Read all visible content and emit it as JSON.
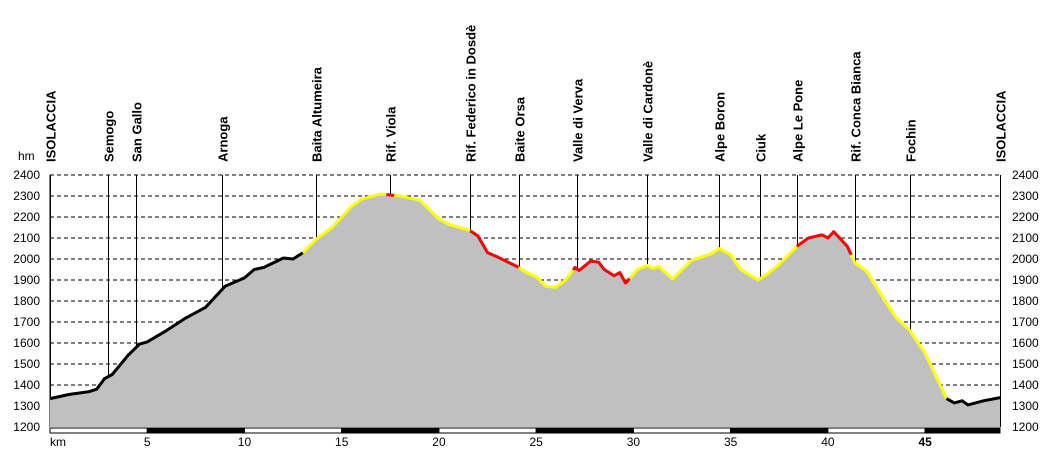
{
  "chart_data": {
    "type": "area",
    "title": "",
    "xlabel": "km",
    "ylabel": "hm",
    "xlim": [
      0,
      48.85
    ],
    "ylim": [
      1200,
      2400
    ],
    "y_ticks": [
      1200,
      1300,
      1400,
      1500,
      1600,
      1700,
      1800,
      1900,
      2000,
      2100,
      2200,
      2300,
      2400
    ],
    "x_ticks": [
      5,
      10,
      15,
      20,
      25,
      30,
      35,
      40,
      45
    ],
    "grid": "horizontal dashed",
    "colors": {
      "fill": "#c0c0c0",
      "easy": "#000000",
      "medium": "#ffff00",
      "hard": "#ff0000"
    },
    "waypoints": [
      {
        "name": "ISOLACCIA",
        "km": 0
      },
      {
        "name": "Semogo",
        "km": 3.0
      },
      {
        "name": "San Gallo",
        "km": 4.4
      },
      {
        "name": "Arnoga",
        "km": 8.85
      },
      {
        "name": "Baita Altumeira",
        "km": 13.7
      },
      {
        "name": "Rif. Viola",
        "km": 17.5
      },
      {
        "name": "Rif. Federico in Dosdè",
        "km": 21.6
      },
      {
        "name": "Baite Orsa",
        "km": 24.1
      },
      {
        "name": "Valle di Verva",
        "km": 27.1
      },
      {
        "name": "Valle di Cardonè",
        "km": 30.7
      },
      {
        "name": "Alpe Boron",
        "km": 34.4
      },
      {
        "name": "Ciuk",
        "km": 36.5
      },
      {
        "name": "Alpe Le Pone",
        "km": 38.4
      },
      {
        "name": "Rif. Conca Bianca",
        "km": 41.4
      },
      {
        "name": "Fochin",
        "km": 44.2
      },
      {
        "name": "ISOLACCIA",
        "km": 48.85
      }
    ],
    "profile": [
      [
        0,
        1335
      ],
      [
        1,
        1355
      ],
      [
        2,
        1368
      ],
      [
        2.4,
        1380
      ],
      [
        2.8,
        1430
      ],
      [
        3.2,
        1450
      ],
      [
        4,
        1540
      ],
      [
        4.6,
        1595
      ],
      [
        5,
        1605
      ],
      [
        6,
        1660
      ],
      [
        7,
        1720
      ],
      [
        8,
        1770
      ],
      [
        9,
        1870
      ],
      [
        10,
        1910
      ],
      [
        10.5,
        1950
      ],
      [
        11,
        1960
      ],
      [
        12,
        2005
      ],
      [
        12.5,
        2000
      ],
      [
        13,
        2030
      ],
      [
        13.7,
        2095
      ],
      [
        14.5,
        2150
      ],
      [
        15.5,
        2250
      ],
      [
        16,
        2285
      ],
      [
        17,
        2310
      ],
      [
        17.5,
        2305
      ],
      [
        18,
        2300
      ],
      [
        19,
        2280
      ],
      [
        20,
        2190
      ],
      [
        20.5,
        2165
      ],
      [
        21.6,
        2135
      ],
      [
        22,
        2110
      ],
      [
        22.5,
        2030
      ],
      [
        23,
        2010
      ],
      [
        24.1,
        1960
      ],
      [
        24.5,
        1935
      ],
      [
        25,
        1915
      ],
      [
        25.5,
        1870
      ],
      [
        26,
        1865
      ],
      [
        26.5,
        1900
      ],
      [
        27,
        1960
      ],
      [
        27.2,
        1945
      ],
      [
        27.8,
        1990
      ],
      [
        28.2,
        1985
      ],
      [
        28.5,
        1950
      ],
      [
        29,
        1920
      ],
      [
        29.3,
        1935
      ],
      [
        29.6,
        1885
      ],
      [
        30.2,
        1950
      ],
      [
        30.7,
        1970
      ],
      [
        31,
        1955
      ],
      [
        31.3,
        1965
      ],
      [
        32,
        1905
      ],
      [
        33,
        1995
      ],
      [
        34,
        2025
      ],
      [
        34.4,
        2050
      ],
      [
        35,
        2020
      ],
      [
        35.5,
        1950
      ],
      [
        36.4,
        1900
      ],
      [
        36.9,
        1930
      ],
      [
        37.5,
        1975
      ],
      [
        38.4,
        2060
      ],
      [
        39,
        2100
      ],
      [
        39.7,
        2115
      ],
      [
        40,
        2100
      ],
      [
        40.3,
        2130
      ],
      [
        41,
        2060
      ],
      [
        41.4,
        1980
      ],
      [
        42,
        1940
      ],
      [
        43,
        1790
      ],
      [
        43.5,
        1720
      ],
      [
        44.2,
        1660
      ],
      [
        45,
        1550
      ],
      [
        46.1,
        1335
      ],
      [
        46.5,
        1315
      ],
      [
        46.9,
        1325
      ],
      [
        47.2,
        1305
      ],
      [
        48,
        1325
      ],
      [
        48.85,
        1340
      ]
    ],
    "segments": [
      {
        "from": 0,
        "to": 13,
        "difficulty": "easy"
      },
      {
        "from": 13,
        "to": 17.3,
        "difficulty": "medium"
      },
      {
        "from": 17.3,
        "to": 17.7,
        "difficulty": "hard"
      },
      {
        "from": 17.7,
        "to": 21.6,
        "difficulty": "medium"
      },
      {
        "from": 21.6,
        "to": 24.1,
        "difficulty": "hard"
      },
      {
        "from": 24.1,
        "to": 26.9,
        "difficulty": "medium"
      },
      {
        "from": 26.9,
        "to": 29.8,
        "difficulty": "hard"
      },
      {
        "from": 29.8,
        "to": 38.4,
        "difficulty": "medium"
      },
      {
        "from": 38.4,
        "to": 41.2,
        "difficulty": "hard"
      },
      {
        "from": 41.2,
        "to": 46.1,
        "difficulty": "medium"
      },
      {
        "from": 46.1,
        "to": 48.85,
        "difficulty": "easy"
      }
    ]
  }
}
